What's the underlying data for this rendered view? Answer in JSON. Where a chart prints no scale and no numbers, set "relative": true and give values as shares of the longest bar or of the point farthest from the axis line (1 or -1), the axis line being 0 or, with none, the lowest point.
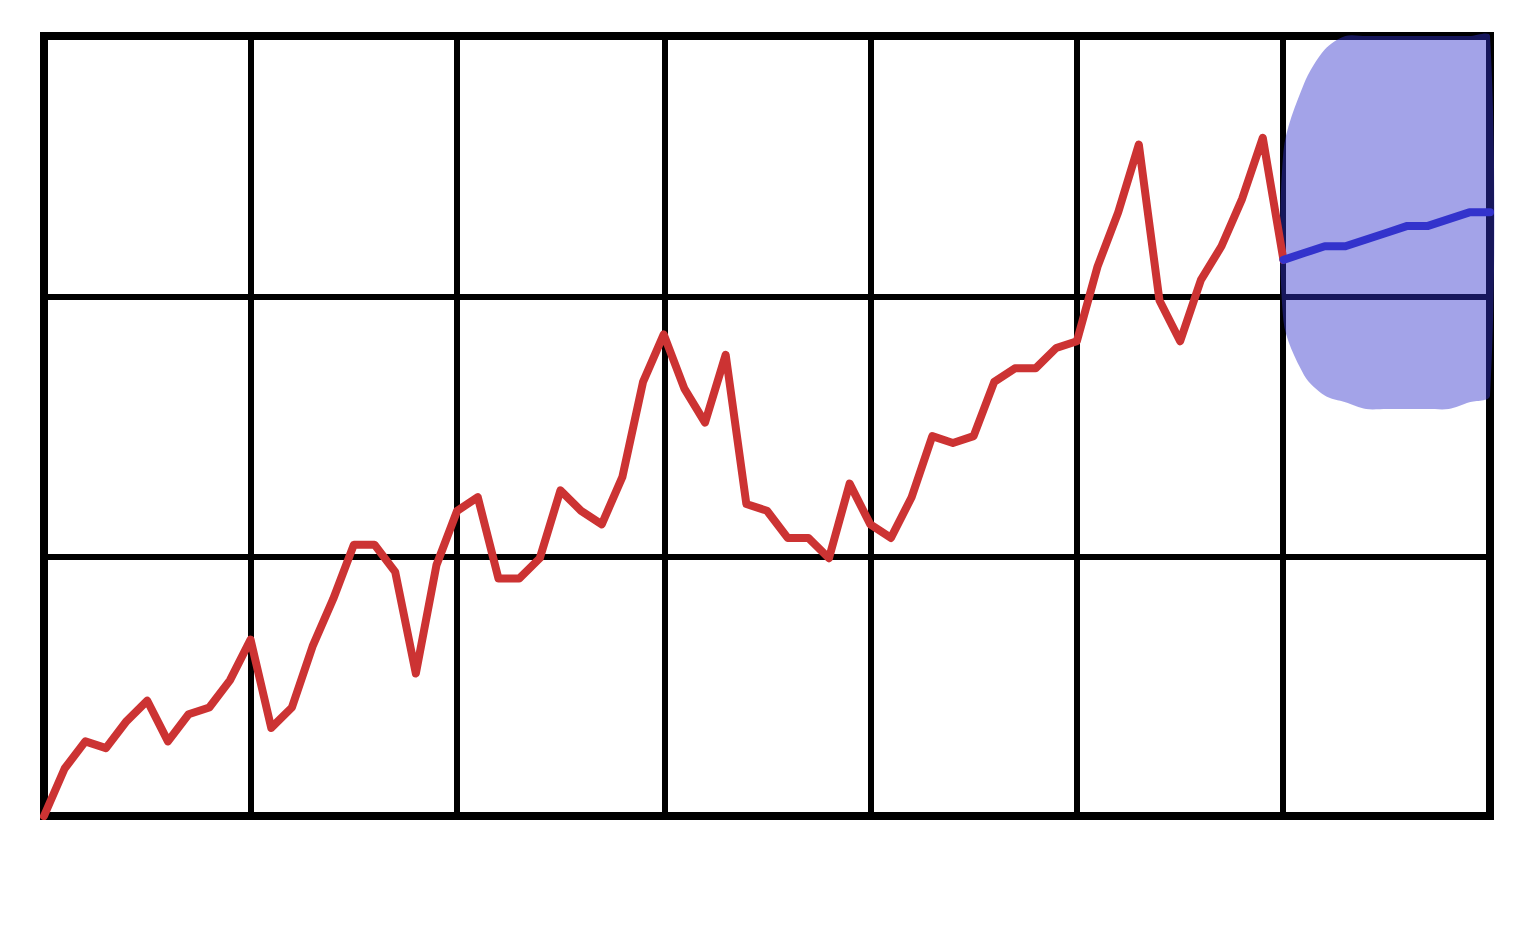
{
  "chart_data": {
    "type": "line",
    "relative": true,
    "grid": true,
    "marker": "none",
    "line_style": "solid",
    "categories": [
      null,
      null,
      null,
      null,
      null,
      null,
      null,
      null,
      null,
      null,
      null,
      null,
      null,
      null,
      null,
      null,
      null,
      null,
      null,
      null,
      null,
      null,
      null,
      null,
      null,
      null,
      null,
      null,
      null,
      null,
      null,
      null,
      null,
      null,
      null,
      null,
      null,
      null,
      null,
      null,
      null,
      null,
      null,
      null,
      null,
      null,
      null,
      null,
      null,
      null,
      null,
      null,
      null,
      null,
      null,
      null,
      null,
      null,
      null,
      null,
      null,
      null,
      null,
      null,
      null,
      null,
      null,
      null,
      null,
      null,
      null
    ],
    "series": [
      {
        "color": "#cc3333",
        "values": [
          0,
          0.07,
          0.11,
          0.1,
          0.14,
          0.17,
          0.11,
          0.15,
          0.16,
          0.2,
          0.26,
          0.13,
          0.16,
          0.25,
          0.32,
          0.4,
          0.4,
          0.36,
          0.21,
          0.37,
          0.45,
          0.47,
          0.35,
          0.35,
          0.38,
          0.48,
          0.45,
          0.43,
          0.5,
          0.64,
          0.71,
          0.63,
          0.58,
          0.68,
          0.46,
          0.45,
          0.41,
          0.41,
          0.38,
          0.49,
          0.43,
          0.41,
          0.47,
          0.56,
          0.55,
          0.56,
          0.64,
          0.66,
          0.66,
          0.69,
          0.7,
          0.81,
          0.89,
          0.99,
          0.76,
          0.7,
          0.79,
          0.84,
          0.91,
          1,
          0.82,
          null,
          null,
          null,
          null,
          null,
          null,
          null,
          null,
          null,
          null
        ]
      },
      {
        "color": "#3333cc",
        "values": [
          null,
          null,
          null,
          null,
          null,
          null,
          null,
          null,
          null,
          null,
          null,
          null,
          null,
          null,
          null,
          null,
          null,
          null,
          null,
          null,
          null,
          null,
          null,
          null,
          null,
          null,
          null,
          null,
          null,
          null,
          null,
          null,
          null,
          null,
          null,
          null,
          null,
          null,
          null,
          null,
          null,
          null,
          null,
          null,
          null,
          null,
          null,
          null,
          null,
          null,
          null,
          null,
          null,
          null,
          null,
          null,
          null,
          null,
          null,
          null,
          0.82,
          0.83,
          0.84,
          0.84,
          0.85,
          0.86,
          0.87,
          0.87,
          0.88,
          0.89,
          0.89
        ],
        "lower": [
          null,
          null,
          null,
          null,
          null,
          null,
          null,
          null,
          null,
          null,
          null,
          null,
          null,
          null,
          null,
          null,
          null,
          null,
          null,
          null,
          null,
          null,
          null,
          null,
          null,
          null,
          null,
          null,
          null,
          null,
          null,
          null,
          null,
          null,
          null,
          null,
          null,
          null,
          null,
          null,
          null,
          null,
          null,
          null,
          null,
          null,
          null,
          null,
          null,
          null,
          null,
          null,
          null,
          null,
          null,
          null,
          null,
          null,
          null,
          null,
          0.73,
          0.65,
          0.62,
          0.61,
          0.6,
          0.6,
          0.6,
          0.6,
          0.6,
          0.61,
          0.62
        ],
        "upper": [
          null,
          null,
          null,
          null,
          null,
          null,
          null,
          null,
          null,
          null,
          null,
          null,
          null,
          null,
          null,
          null,
          null,
          null,
          null,
          null,
          null,
          null,
          null,
          null,
          null,
          null,
          null,
          null,
          null,
          null,
          null,
          null,
          null,
          null,
          null,
          null,
          null,
          null,
          null,
          null,
          null,
          null,
          null,
          null,
          null,
          null,
          null,
          null,
          null,
          null,
          null,
          null,
          null,
          null,
          null,
          null,
          null,
          null,
          null,
          null,
          0.98,
          1.08,
          1.13,
          1.15,
          1.15,
          1.15,
          1.15,
          1.15,
          1.15,
          1.15,
          1.15
        ]
      }
    ]
  }
}
